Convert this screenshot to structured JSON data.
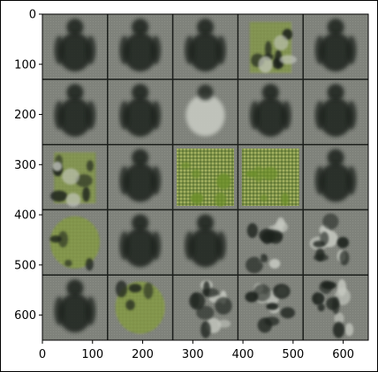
{
  "figure": {
    "x_ticks": [
      0,
      100,
      200,
      300,
      400,
      500,
      600
    ],
    "y_ticks": [
      0,
      100,
      200,
      300,
      400,
      500,
      600
    ],
    "extent": [
      0,
      650,
      0,
      650
    ],
    "grid_rows": 5,
    "grid_cols": 5,
    "tile_descriptions": [
      "dark-figure",
      "dark-figure",
      "dark-figure",
      "green-textured-figure",
      "dark-figure",
      "dark-figure",
      "dark-figure",
      "light-figure",
      "dark-figure",
      "dark-figure",
      "green-textured-figure",
      "dark-figure",
      "green-textured-square",
      "green-textured-square",
      "dark-figure",
      "green-textured-blob",
      "dark-figure",
      "dark-figure",
      "light-blotchy",
      "light-blotchy",
      "dark-figure",
      "green-textured-blob",
      "light-blotchy",
      "light-blotchy",
      "light-blotchy"
    ],
    "colors": {
      "background": "#777a72",
      "tile_gap": "#1a1d1a",
      "dark_figure": "#1b231f",
      "green": "#6c8f2a",
      "light": "#c6c9c1"
    }
  }
}
